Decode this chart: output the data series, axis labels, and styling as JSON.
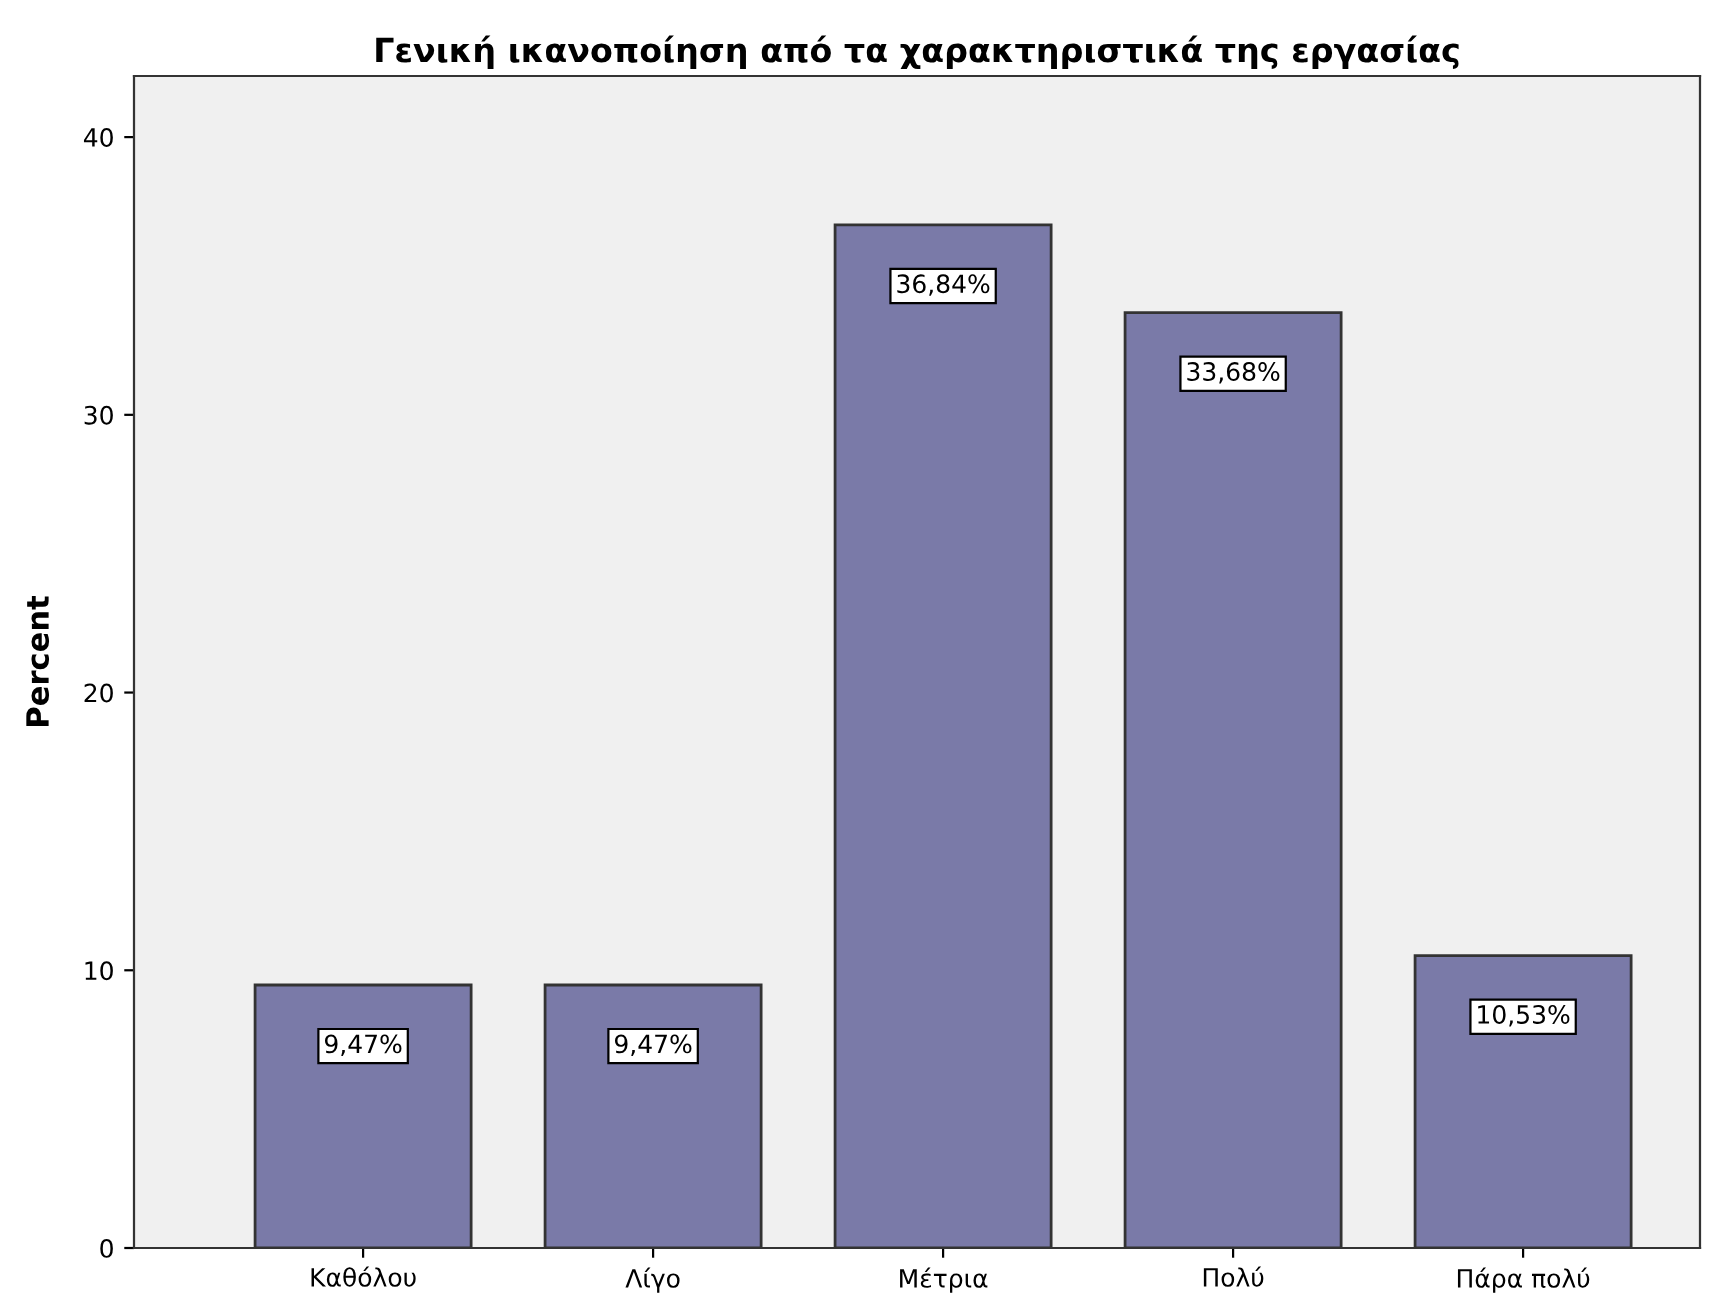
{
  "chart_data": {
    "type": "bar",
    "title": "Γενική ικανοποίηση από τα χαρακτηριστικά της εργασίας",
    "ylabel": "Percent",
    "categories": [
      "Καθόλου",
      "Λίγο",
      "Μέτρια",
      "Πολύ",
      "Πάρα πολύ"
    ],
    "values": [
      9.47,
      9.47,
      36.84,
      33.68,
      10.53
    ],
    "value_labels": [
      "9,47%",
      "9,47%",
      "36,84%",
      "33,68%",
      "10,53%"
    ],
    "color": "#7a7aa8",
    "ylim": [
      0,
      42.2
    ],
    "yticks": [
      0,
      10,
      20,
      30,
      40
    ],
    "grid": false,
    "legend": false
  }
}
